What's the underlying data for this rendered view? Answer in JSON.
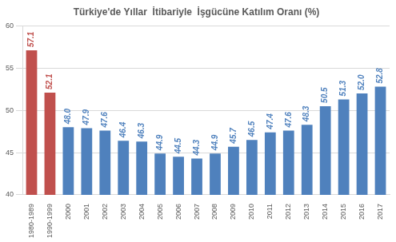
{
  "chart_data": {
    "type": "bar",
    "title": "Türkiye'de Yıllar  İtibariyle  İşgücüne Katılım Oranı (%)",
    "categories": [
      "1980-1989",
      "1990-1999",
      "2000",
      "2001",
      "2002",
      "2003",
      "2004",
      "2005",
      "2006",
      "2007",
      "2008",
      "2009",
      "2010",
      "2011",
      "2012",
      "2013",
      "2014",
      "2015",
      "2016",
      "2017"
    ],
    "values": [
      57.1,
      52.1,
      48.0,
      47.9,
      47.6,
      46.4,
      46.3,
      44.9,
      44.5,
      44.3,
      44.9,
      45.7,
      46.5,
      47.4,
      47.6,
      48.3,
      50.5,
      51.3,
      52.0,
      52.8
    ],
    "value_labels": [
      "57.1",
      "52.1",
      "48.0",
      "47.9",
      "47.6",
      "46.4",
      "46.3",
      "44.9",
      "44.5",
      "44.3",
      "44.9",
      "45.7",
      "46.5",
      "47.4",
      "47.6",
      "48.3",
      "50.5",
      "51.3",
      "52.0",
      "52.8"
    ],
    "colors": [
      "#c0504d",
      "#c0504d",
      "#4f81bd",
      "#4f81bd",
      "#4f81bd",
      "#4f81bd",
      "#4f81bd",
      "#4f81bd",
      "#4f81bd",
      "#4f81bd",
      "#4f81bd",
      "#4f81bd",
      "#4f81bd",
      "#4f81bd",
      "#4f81bd",
      "#4f81bd",
      "#4f81bd",
      "#4f81bd",
      "#4f81bd",
      "#4f81bd"
    ],
    "ylim": [
      40,
      60
    ],
    "yticks": [
      40,
      45,
      50,
      55,
      60
    ],
    "grid": true,
    "data_labels": true
  }
}
